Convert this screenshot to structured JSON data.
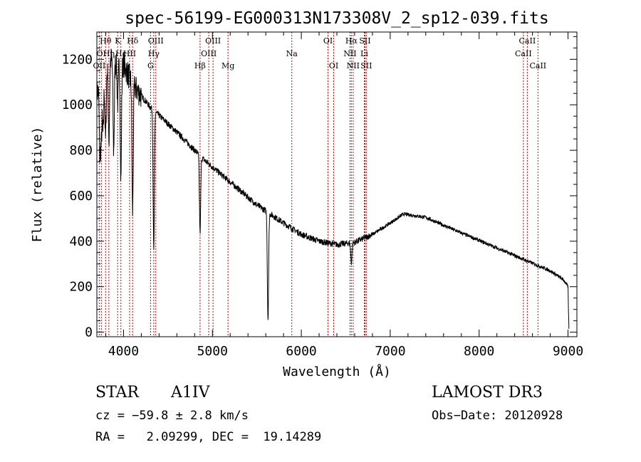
{
  "chart_data": {
    "type": "line",
    "title": "spec-56199-EG000313N173308V_2_sp12-039.fits",
    "xlabel": "Wavelength (Å)",
    "ylabel": "Flux (relative)",
    "xlim": [
      3700,
      9100
    ],
    "ylim": [
      -20,
      1320
    ],
    "xticks": [
      4000,
      5000,
      6000,
      7000,
      8000,
      9000
    ],
    "yticks": [
      0,
      200,
      400,
      600,
      800,
      1000,
      1200
    ],
    "continuum": [
      [
        3700,
        1050
      ],
      [
        3850,
        1200
      ],
      [
        4000,
        1180
      ],
      [
        4100,
        1090
      ],
      [
        4300,
        990
      ],
      [
        4600,
        880
      ],
      [
        4900,
        760
      ],
      [
        5200,
        660
      ],
      [
        5500,
        560
      ],
      [
        5800,
        480
      ],
      [
        6000,
        430
      ],
      [
        6200,
        400
      ],
      [
        6400,
        385
      ],
      [
        6600,
        395
      ],
      [
        6800,
        430
      ],
      [
        7000,
        480
      ],
      [
        7150,
        520
      ],
      [
        7400,
        505
      ],
      [
        7600,
        470
      ],
      [
        7900,
        420
      ],
      [
        8200,
        370
      ],
      [
        8500,
        320
      ],
      [
        8800,
        270
      ],
      [
        8950,
        230
      ],
      [
        9000,
        200
      ],
      [
        9010,
        10
      ]
    ],
    "absorption": [
      [
        3734,
        300
      ],
      [
        3750,
        250
      ],
      [
        3770,
        250
      ],
      [
        3798,
        300
      ],
      [
        3835,
        350
      ],
      [
        3889,
        400
      ],
      [
        3934,
        180
      ],
      [
        3970,
        520
      ],
      [
        4102,
        560
      ],
      [
        4340,
        620
      ],
      [
        4861,
        340
      ],
      [
        5625,
        470
      ],
      [
        6563,
        90
      ]
    ],
    "noise_seed": 7,
    "lines": [
      {
        "label": "Hθ",
        "wavelength": 3798,
        "row": 0
      },
      {
        "label": "OII",
        "wavelength": 3727,
        "row": 2
      },
      {
        "label": "OI",
        "wavelength": 3750,
        "row": 1
      },
      {
        "label": "Hη",
        "wavelength": 3835,
        "row": 1
      },
      {
        "label": "K",
        "wavelength": 3934,
        "row": 0
      },
      {
        "label": "Hε",
        "wavelength": 3970,
        "row": 1
      },
      {
        "label": "Hδ",
        "wavelength": 4102,
        "row": 0
      },
      {
        "label": "HII",
        "wavelength": 4068,
        "row": 1
      },
      {
        "label": "OIII",
        "wavelength": 4363,
        "row": 0
      },
      {
        "label": "Hγ",
        "wavelength": 4340,
        "row": 1
      },
      {
        "label": "G",
        "wavelength": 4304,
        "row": 2
      },
      {
        "label": "Hβ",
        "wavelength": 4861,
        "row": 2
      },
      {
        "label": "OIII",
        "wavelength": 5007,
        "row": 0
      },
      {
        "label": "OIII",
        "wavelength": 4959,
        "row": 1
      },
      {
        "label": "Mg",
        "wavelength": 5175,
        "row": 2
      },
      {
        "label": "Na",
        "wavelength": 5893,
        "row": 1
      },
      {
        "label": "OI",
        "wavelength": 6300,
        "row": 0
      },
      {
        "label": "OI",
        "wavelength": 6364,
        "row": 2
      },
      {
        "label": "Hα",
        "wavelength": 6563,
        "row": 0
      },
      {
        "label": "NII",
        "wavelength": 6548,
        "row": 1
      },
      {
        "label": "NII",
        "wavelength": 6583,
        "row": 2
      },
      {
        "label": "SII",
        "wavelength": 6716,
        "row": 0
      },
      {
        "label": "Li",
        "wavelength": 6708,
        "row": 1
      },
      {
        "label": "SII",
        "wavelength": 6731,
        "row": 2
      },
      {
        "label": "CaII",
        "wavelength": 8542,
        "row": 0
      },
      {
        "label": "CaII",
        "wavelength": 8498,
        "row": 1
      },
      {
        "label": "CaII",
        "wavelength": 8662,
        "row": 2
      }
    ]
  },
  "footer": {
    "object_class": "STAR",
    "subclass": "A1IV",
    "survey": "LAMOST DR3",
    "redshift": "cz = −59.8 ± 2.8 km/s",
    "obs_date": "Obs−Date: 20120928",
    "coordinates": "RA =   2.09299, DEC =  19.14289"
  }
}
